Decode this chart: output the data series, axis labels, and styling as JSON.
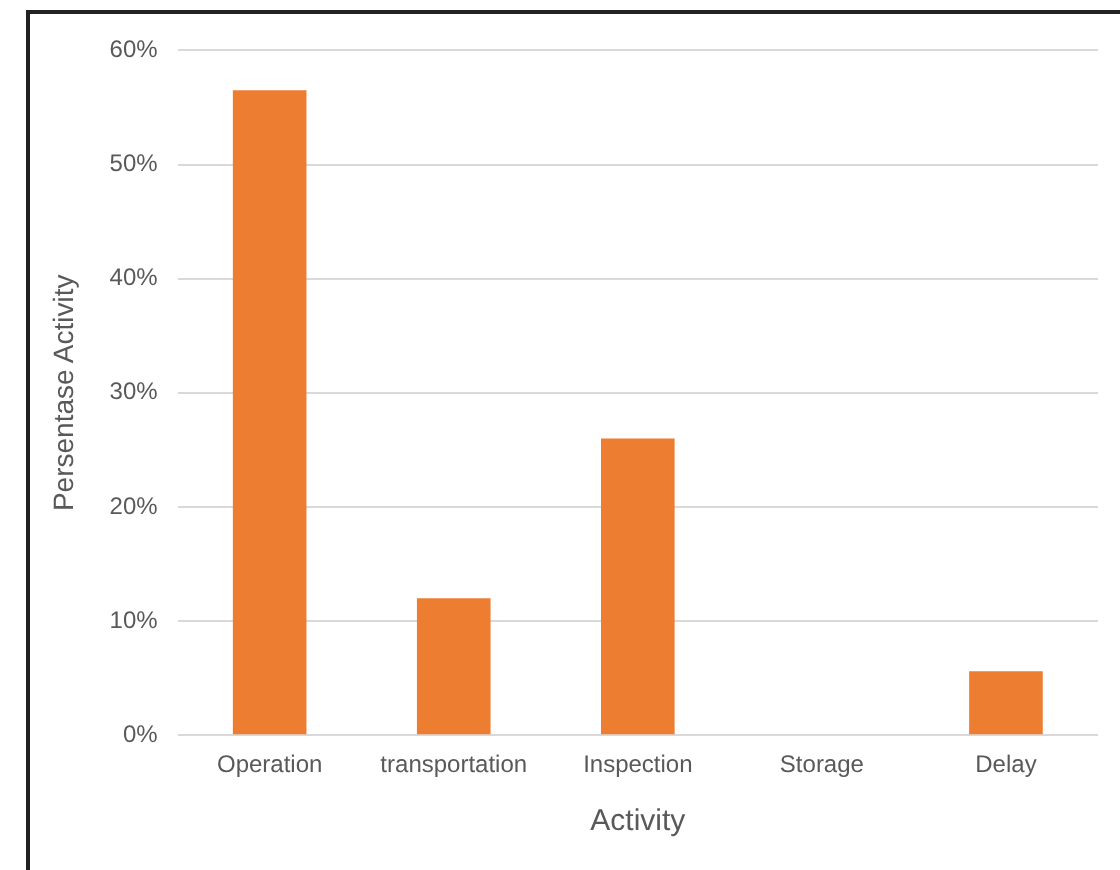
{
  "chart_data": {
    "type": "bar",
    "xlabel": "Activity",
    "ylabel": "Persentase Activity",
    "categories": [
      "Operation",
      "transportation",
      "Inspection",
      "Storage",
      "Delay"
    ],
    "values": [
      56.5,
      12,
      26,
      0,
      5.6
    ],
    "color": "#ed7d31",
    "ylim": [
      0,
      60
    ],
    "yticks": [
      {
        "value": 0,
        "label": "0%"
      },
      {
        "value": 10,
        "label": "10%"
      },
      {
        "value": 20,
        "label": "20%"
      },
      {
        "value": 30,
        "label": "30%"
      },
      {
        "value": 40,
        "label": "40%"
      },
      {
        "value": 50,
        "label": "50%"
      },
      {
        "value": 60,
        "label": "60%"
      }
    ],
    "grid": "y",
    "legend": false
  }
}
